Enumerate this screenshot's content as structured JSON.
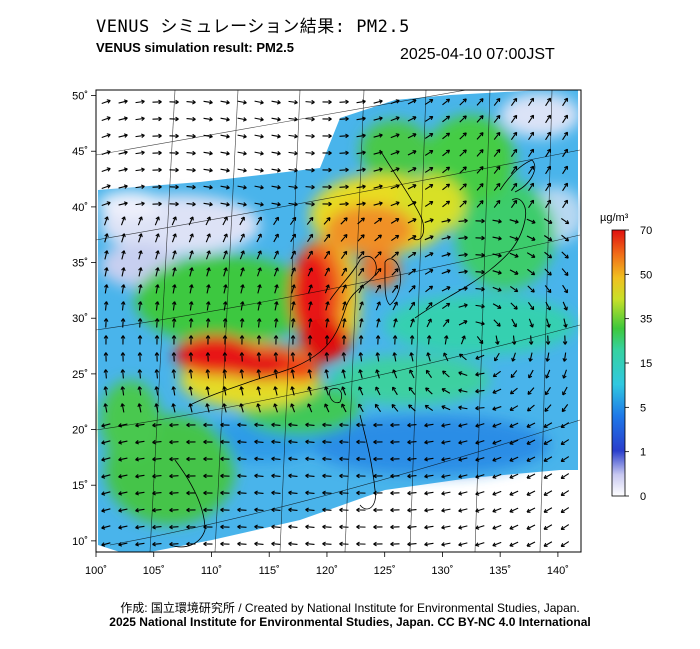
{
  "header": {
    "title_jp": "VENUS シミュレーション結果: PM2.5",
    "title_en": "VENUS simulation result: PM2.5",
    "timestamp": "2025-04-10 07:00JST"
  },
  "footer": {
    "credit": "作成: 国立環境研究所 / Created by National Institute for Environmental Studies, Japan.",
    "copyright": "2025 National Institute for Environmental Studies, Japan. CC BY-NC 4.0 International"
  },
  "map": {
    "lon_ticks": [
      "100˚",
      "105˚",
      "110˚",
      "115˚",
      "120˚",
      "125˚",
      "130˚",
      "135˚",
      "140˚"
    ],
    "lat_ticks": [
      "10˚",
      "15˚",
      "20˚",
      "25˚",
      "30˚",
      "35˚",
      "40˚",
      "45˚",
      "50˚"
    ],
    "lon_range": [
      100,
      142
    ],
    "lat_range": [
      9,
      50.5
    ]
  },
  "colorbar": {
    "unit": "µg/m³",
    "labels": [
      "0",
      "1",
      "5",
      "15",
      "35",
      "50",
      "70"
    ],
    "colors": [
      "#ffffff",
      "#1a3ab8",
      "#2f8fe8",
      "#36d6b0",
      "#3ec83c",
      "#f0e020",
      "#f08a20",
      "#e01010"
    ]
  }
}
